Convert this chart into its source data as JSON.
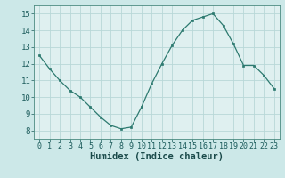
{
  "x": [
    0,
    1,
    2,
    3,
    4,
    5,
    6,
    7,
    8,
    9,
    10,
    11,
    12,
    13,
    14,
    15,
    16,
    17,
    18,
    19,
    20,
    21,
    22,
    23
  ],
  "y": [
    12.5,
    11.7,
    11.0,
    10.4,
    10.0,
    9.4,
    8.8,
    8.3,
    8.1,
    8.2,
    9.4,
    10.8,
    12.0,
    13.1,
    14.0,
    14.6,
    14.8,
    15.0,
    14.3,
    13.2,
    11.9,
    11.9,
    11.3,
    10.5
  ],
  "xlabel": "Humidex (Indice chaleur)",
  "xlim": [
    -0.5,
    23.5
  ],
  "ylim": [
    7.5,
    15.5
  ],
  "yticks": [
    8,
    9,
    10,
    11,
    12,
    13,
    14,
    15
  ],
  "xticks": [
    0,
    1,
    2,
    3,
    4,
    5,
    6,
    7,
    8,
    9,
    10,
    11,
    12,
    13,
    14,
    15,
    16,
    17,
    18,
    19,
    20,
    21,
    22,
    23
  ],
  "line_color": "#2d7a70",
  "marker_color": "#2d7a70",
  "bg_color": "#cce8e8",
  "grid_color": "#b8d8d8",
  "axes_bg": "#dff0f0",
  "tick_label_color": "#1a5a5a",
  "xlabel_color": "#1a4a4a",
  "xlabel_fontsize": 7.5,
  "tick_fontsize": 6.0,
  "ytick_fontsize": 6.5
}
